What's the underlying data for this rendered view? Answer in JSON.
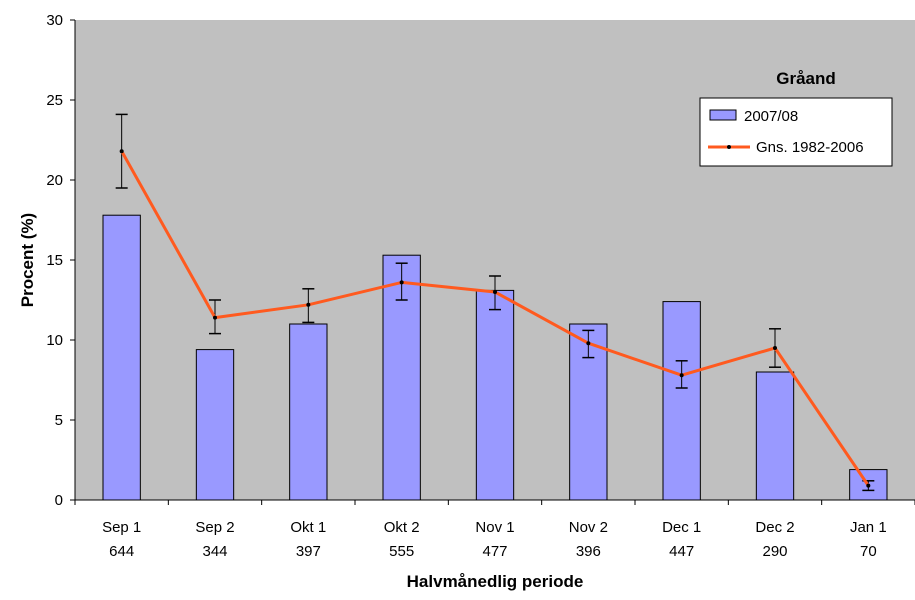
{
  "chart_data": {
    "type": "bar",
    "title": "Gråand",
    "xlabel": "Halvmånedlig periode",
    "ylabel": "Procent (%)",
    "ylim": [
      0,
      30
    ],
    "yticks": [
      "0",
      "5",
      "10",
      "15",
      "20",
      "25",
      "30"
    ],
    "categories": [
      "Sep 1",
      "Sep 2",
      "Okt 1",
      "Okt 2",
      "Nov 1",
      "Nov 2",
      "Dec 1",
      "Dec 2",
      "Jan 1"
    ],
    "category_counts": [
      "644",
      "344",
      "397",
      "555",
      "477",
      "396",
      "447",
      "290",
      "70"
    ],
    "grid": false,
    "legend_position": "top-right",
    "series": [
      {
        "name": "2007/08",
        "kind": "bar",
        "color": "#9999ff",
        "values": [
          17.8,
          9.4,
          11.0,
          15.3,
          13.1,
          11.0,
          12.4,
          8.0,
          1.9
        ]
      },
      {
        "name": "Gns. 1982-2006",
        "kind": "line",
        "color": "#ff5a1f",
        "values": [
          21.8,
          11.4,
          12.2,
          13.6,
          13.0,
          9.8,
          7.8,
          9.5,
          0.9
        ],
        "error_low": [
          19.5,
          10.4,
          11.1,
          12.5,
          11.9,
          8.9,
          7.0,
          8.3,
          0.6
        ],
        "error_high": [
          24.1,
          12.5,
          13.2,
          14.8,
          14.0,
          10.6,
          8.7,
          10.7,
          1.2
        ]
      }
    ],
    "plot_background": "#c0c0c0"
  }
}
